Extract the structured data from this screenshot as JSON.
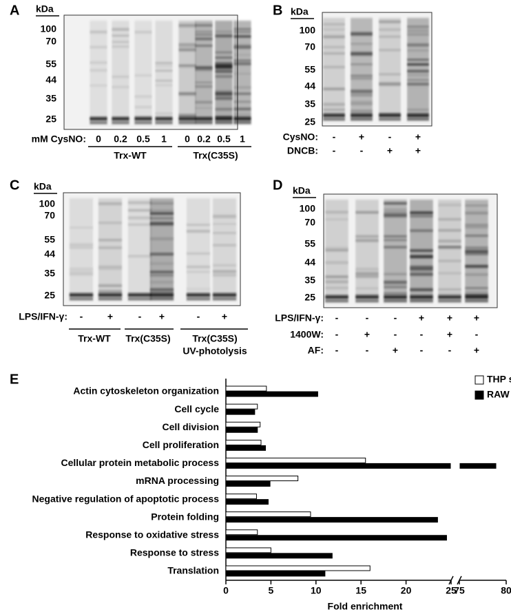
{
  "panel_a": {
    "letter": "A",
    "unit": "kDa",
    "markers": [
      "100",
      "70",
      "55",
      "44",
      "35",
      "25"
    ],
    "row_label": "mM CysNO:",
    "lanes": [
      "0",
      "0.2",
      "0.5",
      "1",
      "0",
      "0.2",
      "0.5",
      "1"
    ],
    "groups": [
      "Trx-WT",
      "Trx(C35S)"
    ]
  },
  "panel_b": {
    "letter": "B",
    "unit": "kDa",
    "markers": [
      "100",
      "70",
      "55",
      "44",
      "35",
      "25"
    ],
    "rows": [
      {
        "label": "CysNO:",
        "values": [
          "-",
          "+",
          "-",
          "+"
        ]
      },
      {
        "label": "DNCB:",
        "values": [
          "-",
          "-",
          "+",
          "+"
        ]
      }
    ]
  },
  "panel_c": {
    "letter": "C",
    "unit": "kDa",
    "markers": [
      "100",
      "70",
      "55",
      "44",
      "35",
      "25"
    ],
    "rows": [
      {
        "label": "LPS/IFN-γ:",
        "values": [
          "-",
          "+",
          "-",
          "+",
          "-",
          "+"
        ]
      }
    ],
    "groups": [
      "Trx-WT",
      "Trx(C35S)",
      "Trx(C35S)"
    ],
    "group_note": "UV-photolysis"
  },
  "panel_d": {
    "letter": "D",
    "unit": "kDa",
    "markers": [
      "100",
      "70",
      "55",
      "44",
      "35",
      "25"
    ],
    "rows": [
      {
        "label": "LPS/IFN-γ:",
        "values": [
          "-",
          "-",
          "-",
          "+",
          "+",
          "+"
        ]
      },
      {
        "label": "1400W:",
        "values": [
          "-",
          "+",
          "-",
          "-",
          "+",
          "-"
        ]
      },
      {
        "label": "AF:",
        "values": [
          "-",
          "-",
          "+",
          "-",
          "-",
          "+"
        ]
      }
    ]
  },
  "chart_data": {
    "type": "hbar",
    "panel_label": "E",
    "xlabel": "Fold enrichment",
    "categories": [
      "Actin cytoskeleton organization",
      "Cell cycle",
      "Cell division",
      "Cell proliferation",
      "Cellular protein metabolic process",
      "mRNA processing",
      "Negative regulation of apoptotic process",
      "Protein folding",
      "Response to oxidative stress",
      "Response to stress",
      "Translation"
    ],
    "series": [
      {
        "name": "THP system",
        "color": "#ffffff",
        "values": [
          4.5,
          3.5,
          3.8,
          3.9,
          15.5,
          8.0,
          3.4,
          9.4,
          3.5,
          5.0,
          16.0
        ]
      },
      {
        "name": "RAW system",
        "color": "#000000",
        "values": [
          10.2,
          3.2,
          3.5,
          4.4,
          78.9,
          4.9,
          4.7,
          23.5,
          24.5,
          11.8,
          11.0
        ]
      }
    ],
    "xlim": [
      0,
      80
    ],
    "xbreak": [
      25,
      75
    ],
    "xticks": [
      0,
      5,
      10,
      15,
      20,
      25,
      75,
      80
    ],
    "legend": "upper right"
  }
}
